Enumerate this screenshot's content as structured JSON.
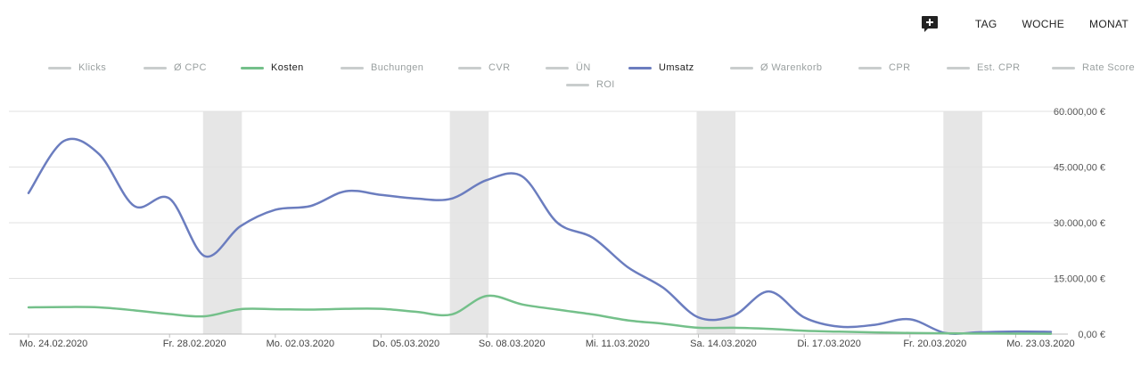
{
  "toolbar": {
    "ranges": [
      {
        "label": "TAG",
        "active": true
      },
      {
        "label": "WOCHE",
        "active": false
      },
      {
        "label": "MONAT",
        "active": false
      }
    ]
  },
  "legend": [
    {
      "label": "Klicks",
      "active": false
    },
    {
      "label": "Ø CPC",
      "active": false
    },
    {
      "label": "Kosten",
      "active": true,
      "color": "#74c08a"
    },
    {
      "label": "Buchungen",
      "active": false
    },
    {
      "label": "CVR",
      "active": false
    },
    {
      "label": "ÜN",
      "active": false
    },
    {
      "label": "Umsatz",
      "active": true,
      "color": "#6b7dbf"
    },
    {
      "label": "Ø Warenkorb",
      "active": false
    },
    {
      "label": "CPR",
      "active": false
    },
    {
      "label": "Est. CPR",
      "active": false
    },
    {
      "label": "Rate Score",
      "active": false
    },
    {
      "label": "ROI",
      "active": false
    }
  ],
  "chart_data": {
    "type": "line",
    "ylim": [
      0,
      60000
    ],
    "yticks": [
      "0,00 €",
      "15.000,00 €",
      "30.000,00 €",
      "45.000,00 €",
      "60.000,00 €"
    ],
    "ytick_values": [
      0,
      15000,
      30000,
      45000,
      60000
    ],
    "x": [
      "24.02.2020",
      "25.02.2020",
      "26.02.2020",
      "27.02.2020",
      "28.02.2020",
      "29.02.2020",
      "01.03.2020",
      "02.03.2020",
      "03.03.2020",
      "04.03.2020",
      "05.03.2020",
      "06.03.2020",
      "07.03.2020",
      "08.03.2020",
      "09.03.2020",
      "10.03.2020",
      "11.03.2020",
      "12.03.2020",
      "13.03.2020",
      "14.03.2020",
      "15.03.2020",
      "16.03.2020",
      "17.03.2020",
      "18.03.2020",
      "19.03.2020",
      "20.03.2020",
      "21.03.2020",
      "22.03.2020",
      "23.03.2020",
      "24.03.2020"
    ],
    "xtick_labels": [
      {
        "index": 0,
        "label": "Mo. 24.02.2020"
      },
      {
        "index": 4,
        "label": "Fr. 28.02.2020"
      },
      {
        "index": 7,
        "label": "Mo. 02.03.2020"
      },
      {
        "index": 10,
        "label": "Do. 05.03.2020"
      },
      {
        "index": 13,
        "label": "So. 08.03.2020"
      },
      {
        "index": 16,
        "label": "Mi. 11.03.2020"
      },
      {
        "index": 19,
        "label": "Sa. 14.03.2020"
      },
      {
        "index": 22,
        "label": "Di. 17.03.2020"
      },
      {
        "index": 25,
        "label": "Fr. 20.03.2020"
      },
      {
        "index": 28,
        "label": "Mo. 23.03.2020"
      }
    ],
    "weekend_bands": [
      [
        5,
        6
      ],
      [
        12,
        13
      ],
      [
        19,
        20
      ],
      [
        26,
        27
      ]
    ],
    "grid": true,
    "series": [
      {
        "name": "Umsatz",
        "color": "#6b7dbf",
        "values": [
          38000,
          52000,
          48500,
          34500,
          36500,
          21000,
          29000,
          33500,
          34500,
          38500,
          37500,
          36500,
          36500,
          41500,
          42500,
          30000,
          26000,
          18000,
          12500,
          4500,
          5000,
          11500,
          4500,
          2000,
          2500,
          4000,
          300,
          500,
          700,
          600
        ]
      },
      {
        "name": "Kosten",
        "color": "#74c08a",
        "values": [
          7200,
          7300,
          7200,
          6400,
          5400,
          4800,
          6700,
          6700,
          6600,
          6800,
          6800,
          6000,
          5300,
          10300,
          8000,
          6600,
          5300,
          3700,
          2800,
          1700,
          1700,
          1400,
          900,
          650,
          450,
          300,
          200,
          150,
          120,
          100
        ]
      }
    ]
  }
}
